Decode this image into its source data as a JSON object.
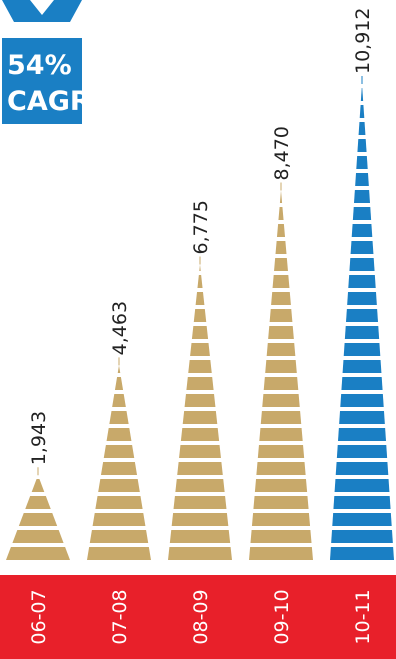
{
  "badge": {
    "line1": "54%",
    "line2": "CAGR",
    "color": "#1a7fc4"
  },
  "chart_data": {
    "type": "bar",
    "categories": [
      "06-07",
      "07-08",
      "08-09",
      "09-10",
      "10-11"
    ],
    "values": [
      1943,
      4463,
      6775,
      8470,
      10912
    ],
    "value_labels": [
      "1,943",
      "4,463",
      "6,775",
      "8,470",
      "10,912"
    ],
    "title": "",
    "xlabel": "",
    "ylabel": "",
    "ylim": [
      0,
      10912
    ],
    "colors": {
      "default": "#c8a96a",
      "highlight": "#1a7fc4",
      "category_band": "#e8202a",
      "background": "#ffffff"
    },
    "highlight_index": 4
  }
}
